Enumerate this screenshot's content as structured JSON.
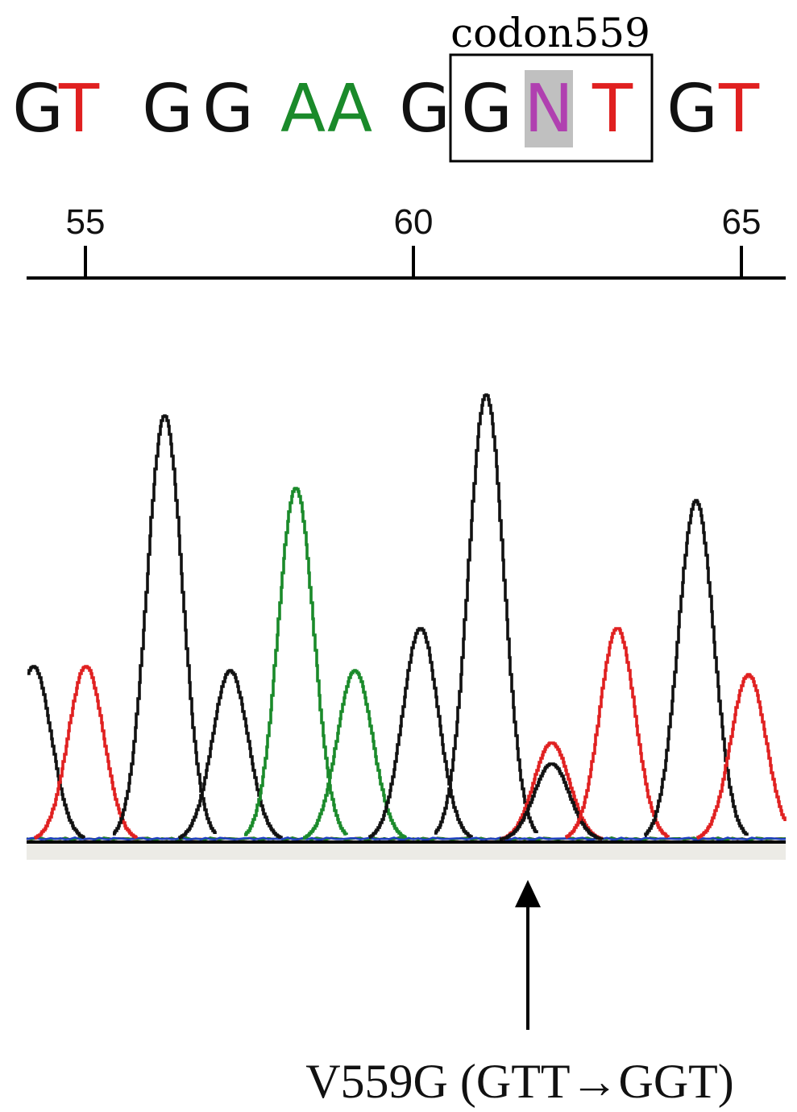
{
  "figure": {
    "codon_label": "codon559",
    "mutation_label": "V559G (GTT→GGT)"
  },
  "chart_data": {
    "type": "line",
    "title": "",
    "bases": [
      {
        "letter": "G",
        "color": "#111111"
      },
      {
        "letter": "T",
        "color": "#e02020"
      },
      {
        "letter": "G",
        "color": "#111111"
      },
      {
        "letter": "G",
        "color": "#111111"
      },
      {
        "letter": "A",
        "color": "#1a8a2a"
      },
      {
        "letter": "A",
        "color": "#1a8a2a"
      },
      {
        "letter": "G",
        "color": "#111111"
      },
      {
        "letter": "G",
        "color": "#111111"
      },
      {
        "letter": "N",
        "color": "#b040b0",
        "highlight": "#c0c0c0"
      },
      {
        "letter": "T",
        "color": "#e02020"
      },
      {
        "letter": "G",
        "color": "#111111"
      },
      {
        "letter": "T",
        "color": "#e02020"
      }
    ],
    "codon_box": {
      "first_base_index": 7,
      "last_base_index": 9
    },
    "axis": {
      "x_range": [
        54.2,
        66.4
      ],
      "ticks": [
        55,
        60,
        65
      ],
      "tick_labels": [
        "55",
        "60",
        "65"
      ]
    },
    "y_range": [
      0,
      100
    ],
    "peaks": [
      {
        "base": "G",
        "color": "#111111",
        "position": 54.2,
        "height": 41
      },
      {
        "base": "T",
        "color": "#e02020",
        "position": 55.0,
        "height": 41
      },
      {
        "base": "G",
        "color": "#111111",
        "position": 56.2,
        "height": 100
      },
      {
        "base": "G",
        "color": "#111111",
        "position": 57.2,
        "height": 40
      },
      {
        "base": "A",
        "color": "#1a8a2a",
        "position": 58.2,
        "height": 83
      },
      {
        "base": "A",
        "color": "#1a8a2a",
        "position": 59.1,
        "height": 40
      },
      {
        "base": "G",
        "color": "#111111",
        "position": 60.1,
        "height": 50
      },
      {
        "base": "G",
        "color": "#111111",
        "position": 61.1,
        "height": 105
      },
      {
        "base": "N",
        "color": "#e02020",
        "position": 62.1,
        "height": 23
      },
      {
        "base": "N",
        "color": "#111111",
        "position": 62.1,
        "height": 18
      },
      {
        "base": "T",
        "color": "#e02020",
        "position": 63.1,
        "height": 50
      },
      {
        "base": "G",
        "color": "#111111",
        "position": 64.3,
        "height": 80
      },
      {
        "base": "T",
        "color": "#e02020",
        "position": 65.1,
        "height": 39
      }
    ],
    "series": [
      {
        "color": "#111111",
        "base": "G"
      },
      {
        "color": "#e02020",
        "base": "T"
      },
      {
        "color": "#1a8a2a",
        "base": "A"
      },
      {
        "color": "#1f3fbf",
        "base": "C"
      }
    ],
    "mutation_position": 61.7
  }
}
